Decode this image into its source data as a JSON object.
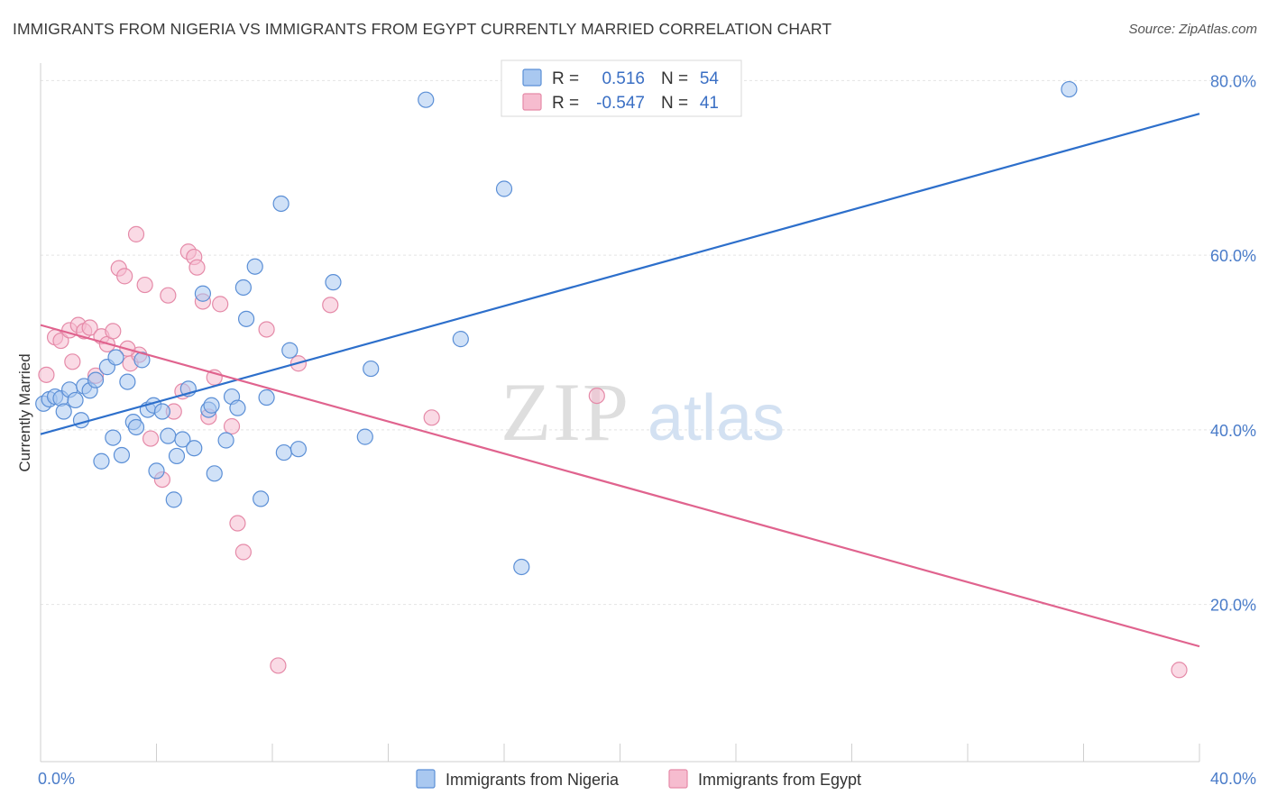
{
  "title": "IMMIGRANTS FROM NIGERIA VS IMMIGRANTS FROM EGYPT CURRENTLY MARRIED CORRELATION CHART",
  "source": "Source: ZipAtlas.com",
  "watermark": {
    "zip": "ZIP",
    "atlas": "atlas"
  },
  "colors": {
    "nigeria_fill": "#a9c8f0",
    "nigeria_stroke": "#5b8fd6",
    "nigeria_line": "#2d6fcb",
    "egypt_fill": "#f6bccf",
    "egypt_stroke": "#e58aa8",
    "egypt_line": "#e0638e",
    "tick_color": "#4a7cc9",
    "grid": "#e4e4e4"
  },
  "legend": {
    "rows": [
      {
        "r_label": "R =",
        "r_value": "0.516",
        "n_label": "N =",
        "n_value": "54"
      },
      {
        "r_label": "R =",
        "r_value": "-0.547",
        "n_label": "N =",
        "n_value": "41"
      }
    ]
  },
  "chart_data": {
    "type": "scatter",
    "title": "IMMIGRANTS FROM NIGERIA VS IMMIGRANTS FROM EGYPT CURRENTLY MARRIED CORRELATION CHART",
    "xlabel": "",
    "ylabel": "Currently Married",
    "xlim": [
      0,
      40
    ],
    "ylim": [
      2,
      82
    ],
    "x_tick_labels": [
      "0.0%",
      "40.0%"
    ],
    "y_ticks": [
      20,
      40,
      60,
      80
    ],
    "y_tick_labels": [
      "20.0%",
      "40.0%",
      "60.0%",
      "80.0%"
    ],
    "grid": true,
    "legend_placement": "top-center",
    "series": [
      {
        "name": "Immigrants from Nigeria",
        "r": 0.516,
        "n": 54,
        "trend": {
          "x": [
            0,
            40
          ],
          "y": [
            39.5,
            76.2
          ]
        },
        "points": [
          [
            0.1,
            43.0
          ],
          [
            0.3,
            43.5
          ],
          [
            0.5,
            43.8
          ],
          [
            0.7,
            43.6
          ],
          [
            0.8,
            42.1
          ],
          [
            1.0,
            44.6
          ],
          [
            1.2,
            43.4
          ],
          [
            1.4,
            41.1
          ],
          [
            1.5,
            45.0
          ],
          [
            1.7,
            44.5
          ],
          [
            1.9,
            45.7
          ],
          [
            2.1,
            36.4
          ],
          [
            2.3,
            47.2
          ],
          [
            2.5,
            39.1
          ],
          [
            2.6,
            48.3
          ],
          [
            2.8,
            37.1
          ],
          [
            3.0,
            45.5
          ],
          [
            3.2,
            40.9
          ],
          [
            3.3,
            40.3
          ],
          [
            3.5,
            48.0
          ],
          [
            3.7,
            42.3
          ],
          [
            3.9,
            42.8
          ],
          [
            4.0,
            35.3
          ],
          [
            4.2,
            42.1
          ],
          [
            4.4,
            39.3
          ],
          [
            4.7,
            37.0
          ],
          [
            4.9,
            38.9
          ],
          [
            5.1,
            44.7
          ],
          [
            5.3,
            37.9
          ],
          [
            5.6,
            55.6
          ],
          [
            5.8,
            42.3
          ],
          [
            5.9,
            42.8
          ],
          [
            6.0,
            35.0
          ],
          [
            6.4,
            38.8
          ],
          [
            6.6,
            43.8
          ],
          [
            6.8,
            42.5
          ],
          [
            7.0,
            56.3
          ],
          [
            7.1,
            52.7
          ],
          [
            7.4,
            58.7
          ],
          [
            7.6,
            32.1
          ],
          [
            7.8,
            43.7
          ],
          [
            8.3,
            65.9
          ],
          [
            8.4,
            37.4
          ],
          [
            8.6,
            49.1
          ],
          [
            8.9,
            37.8
          ],
          [
            10.1,
            56.9
          ],
          [
            11.2,
            39.2
          ],
          [
            11.4,
            47.0
          ],
          [
            13.3,
            77.8
          ],
          [
            14.5,
            50.4
          ],
          [
            16.0,
            67.6
          ],
          [
            16.6,
            24.3
          ],
          [
            35.5,
            79.0
          ],
          [
            4.6,
            32.0
          ]
        ]
      },
      {
        "name": "Immigrants from Egypt",
        "r": -0.547,
        "n": 41,
        "trend": {
          "x": [
            0,
            40
          ],
          "y": [
            52.0,
            15.2
          ]
        },
        "points": [
          [
            0.2,
            46.3
          ],
          [
            0.5,
            50.6
          ],
          [
            0.7,
            50.2
          ],
          [
            1.0,
            51.4
          ],
          [
            1.1,
            47.8
          ],
          [
            1.3,
            52.0
          ],
          [
            1.5,
            51.3
          ],
          [
            1.7,
            51.7
          ],
          [
            1.9,
            46.2
          ],
          [
            2.1,
            50.7
          ],
          [
            2.3,
            49.8
          ],
          [
            2.5,
            51.3
          ],
          [
            2.7,
            58.5
          ],
          [
            2.9,
            57.6
          ],
          [
            3.1,
            47.6
          ],
          [
            3.3,
            62.4
          ],
          [
            3.4,
            48.6
          ],
          [
            3.6,
            56.6
          ],
          [
            3.8,
            39.0
          ],
          [
            4.2,
            34.3
          ],
          [
            4.4,
            55.4
          ],
          [
            4.6,
            42.1
          ],
          [
            4.9,
            44.4
          ],
          [
            5.1,
            60.4
          ],
          [
            5.3,
            59.8
          ],
          [
            5.4,
            58.6
          ],
          [
            5.6,
            54.7
          ],
          [
            5.8,
            41.5
          ],
          [
            6.0,
            46.0
          ],
          [
            6.2,
            54.4
          ],
          [
            6.6,
            40.4
          ],
          [
            6.8,
            29.3
          ],
          [
            7.0,
            26.0
          ],
          [
            7.8,
            51.5
          ],
          [
            8.2,
            13.0
          ],
          [
            8.9,
            47.6
          ],
          [
            10.0,
            54.3
          ],
          [
            13.5,
            41.4
          ],
          [
            19.2,
            43.9
          ],
          [
            39.3,
            12.5
          ],
          [
            3.0,
            49.3
          ]
        ]
      }
    ]
  },
  "bottom_legend": {
    "nigeria": "Immigrants from Nigeria",
    "egypt": "Immigrants from Egypt"
  }
}
